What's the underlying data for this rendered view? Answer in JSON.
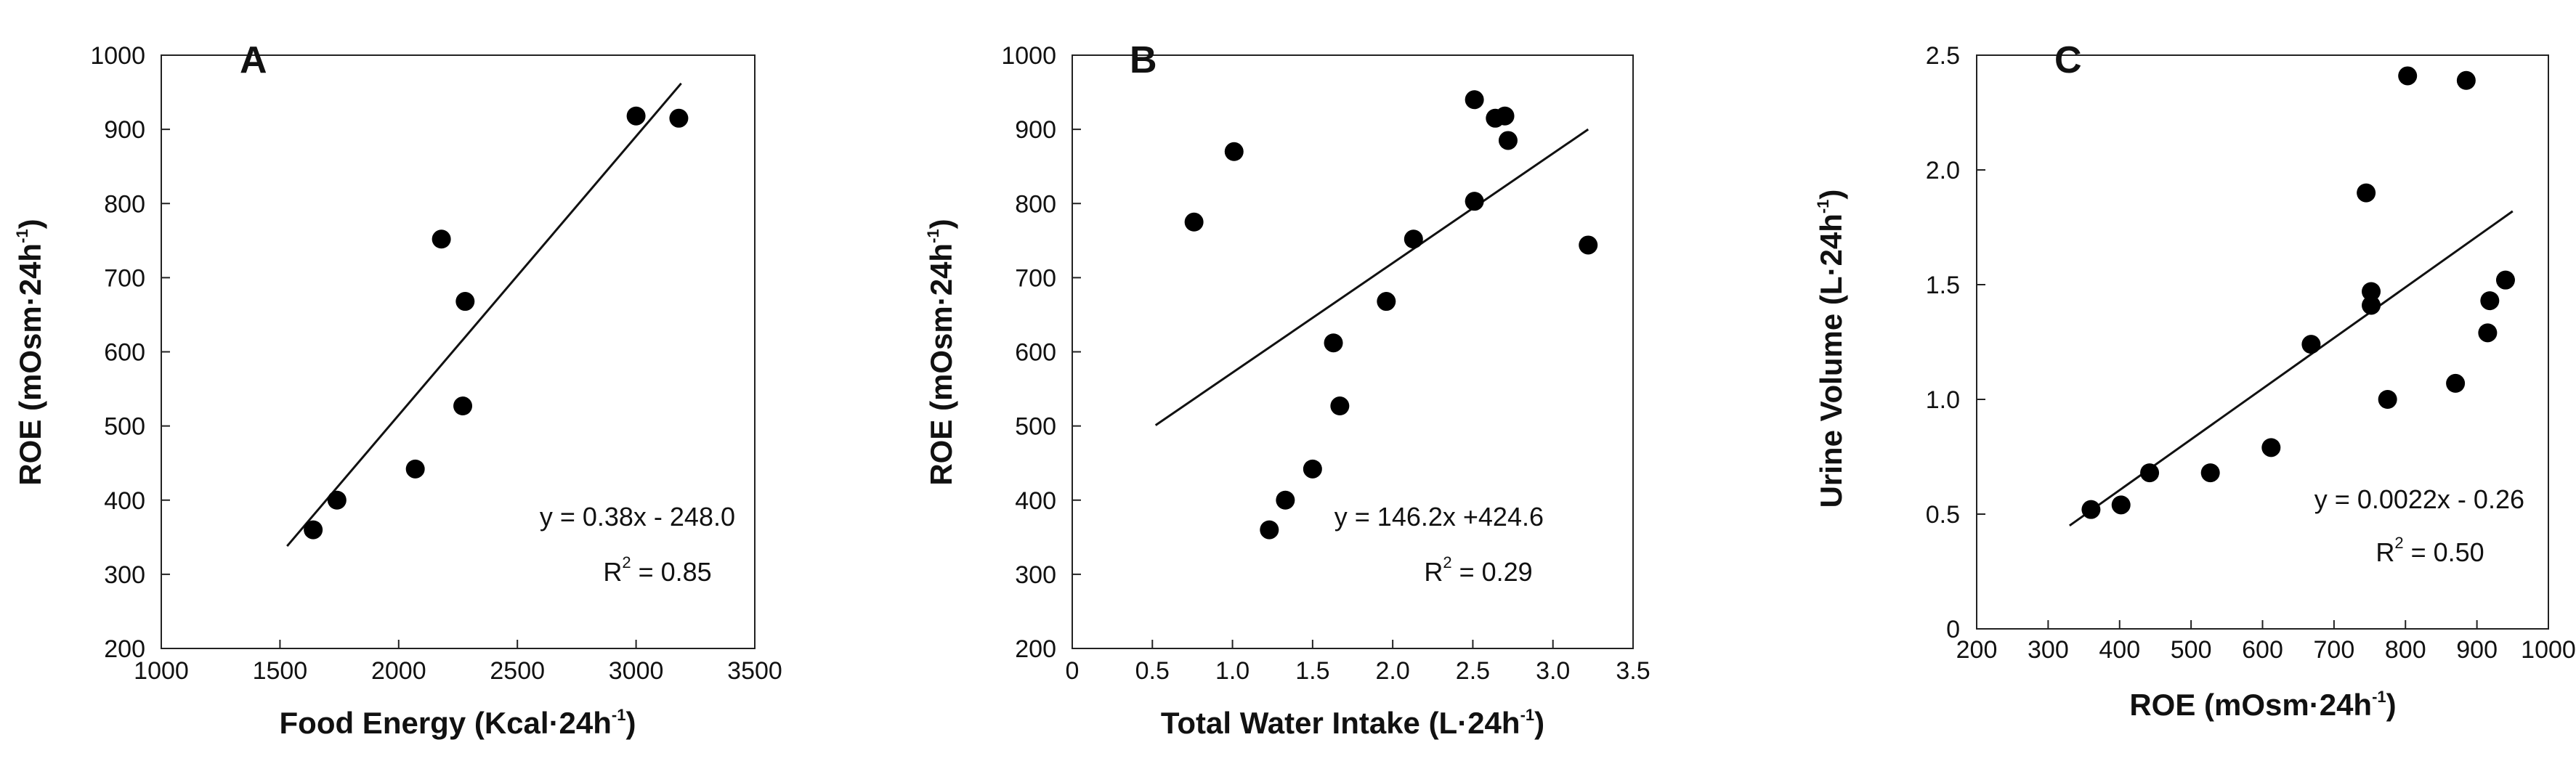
{
  "chart_data": [
    {
      "type": "scatter",
      "id": "A",
      "panel_label": "A",
      "xlabel": "Food Energy (Kcal·24h",
      "xlabel_sup": "-1",
      "xlabel_end": ")",
      "ylabel": "ROE (mOsm·24h",
      "ylabel_sup": "-1",
      "ylabel_end": ")",
      "xlim": [
        1000,
        3500
      ],
      "ylim": [
        200,
        1000
      ],
      "xticks": [
        1000,
        1500,
        2000,
        2500,
        3000,
        3500
      ],
      "yticks": [
        200,
        300,
        400,
        500,
        600,
        700,
        800,
        900,
        1000
      ],
      "points": [
        {
          "x": 1640,
          "y": 360
        },
        {
          "x": 1740,
          "y": 400
        },
        {
          "x": 2070,
          "y": 442
        },
        {
          "x": 2180,
          "y": 752
        },
        {
          "x": 2270,
          "y": 527
        },
        {
          "x": 2280,
          "y": 668
        },
        {
          "x": 3000,
          "y": 918
        },
        {
          "x": 3180,
          "y": 915
        }
      ],
      "fit": {
        "x0": 1530,
        "y0": 338,
        "x1": 3190,
        "y1": 962
      },
      "equation": "y = 0.38x - 248.0",
      "r2_prefix": "R",
      "r2_sup": "2",
      "r2_value": " = 0.85"
    },
    {
      "type": "scatter",
      "id": "B",
      "panel_label": "B",
      "xlabel": "Total Water Intake (L·24h",
      "xlabel_sup": "-1",
      "xlabel_end": ")",
      "ylabel": "ROE (mOsm·24h",
      "ylabel_sup": "-1",
      "ylabel_end": ")",
      "xlim": [
        0,
        3.5
      ],
      "ylim": [
        200,
        1000
      ],
      "xticks": [
        "0",
        "0.5",
        "1.0",
        "1.5",
        "2.0",
        "2.5",
        "3.0",
        "3.5"
      ],
      "xtick_values": [
        0,
        0.5,
        1.0,
        1.5,
        2.0,
        2.5,
        3.0,
        3.5
      ],
      "yticks": [
        200,
        300,
        400,
        500,
        600,
        700,
        800,
        900,
        1000
      ],
      "points": [
        {
          "x": 0.76,
          "y": 775
        },
        {
          "x": 1.01,
          "y": 870
        },
        {
          "x": 1.23,
          "y": 360
        },
        {
          "x": 1.33,
          "y": 400
        },
        {
          "x": 1.5,
          "y": 442
        },
        {
          "x": 1.63,
          "y": 612
        },
        {
          "x": 1.67,
          "y": 527
        },
        {
          "x": 1.96,
          "y": 668
        },
        {
          "x": 2.13,
          "y": 752
        },
        {
          "x": 2.51,
          "y": 940
        },
        {
          "x": 2.51,
          "y": 803
        },
        {
          "x": 2.64,
          "y": 915
        },
        {
          "x": 2.7,
          "y": 918
        },
        {
          "x": 2.72,
          "y": 885
        },
        {
          "x": 3.22,
          "y": 744
        }
      ],
      "fit": {
        "x0": 0.52,
        "y0": 501,
        "x1": 3.22,
        "y1": 900
      },
      "equation": "y = 146.2x +424.6",
      "r2_prefix": "R",
      "r2_sup": "2",
      "r2_value": " = 0.29"
    },
    {
      "type": "scatter",
      "id": "C",
      "panel_label": "C",
      "xlabel": "ROE (mOsm·24h",
      "xlabel_sup": "-1",
      "xlabel_end": ")",
      "ylabel": "Urine Volume (L·24h",
      "ylabel_sup": "-1",
      "ylabel_end": ")",
      "xlim": [
        200,
        1000
      ],
      "ylim": [
        0,
        2.5
      ],
      "xticks": [
        200,
        300,
        400,
        500,
        600,
        700,
        800,
        900,
        1000
      ],
      "yticks": [
        "0",
        "0.5",
        "1.0",
        "1.5",
        "2.0",
        "2.5"
      ],
      "ytick_values": [
        0,
        0.5,
        1.0,
        1.5,
        2.0,
        2.5
      ],
      "points": [
        {
          "x": 360,
          "y": 0.52
        },
        {
          "x": 402,
          "y": 0.54
        },
        {
          "x": 442,
          "y": 0.68
        },
        {
          "x": 527,
          "y": 0.68
        },
        {
          "x": 612,
          "y": 0.79
        },
        {
          "x": 668,
          "y": 1.24
        },
        {
          "x": 745,
          "y": 1.9
        },
        {
          "x": 752,
          "y": 1.47
        },
        {
          "x": 752,
          "y": 1.41
        },
        {
          "x": 775,
          "y": 1.0
        },
        {
          "x": 803,
          "y": 2.41
        },
        {
          "x": 870,
          "y": 1.07
        },
        {
          "x": 885,
          "y": 2.39
        },
        {
          "x": 915,
          "y": 1.29
        },
        {
          "x": 918,
          "y": 1.43
        },
        {
          "x": 940,
          "y": 1.52
        }
      ],
      "fit": {
        "x0": 330,
        "y0": 0.45,
        "x1": 950,
        "y1": 1.82
      },
      "equation": "y = 0.0022x - 0.26",
      "r2_prefix": "R",
      "r2_sup": "2",
      "r2_value": " = 0.50"
    }
  ]
}
